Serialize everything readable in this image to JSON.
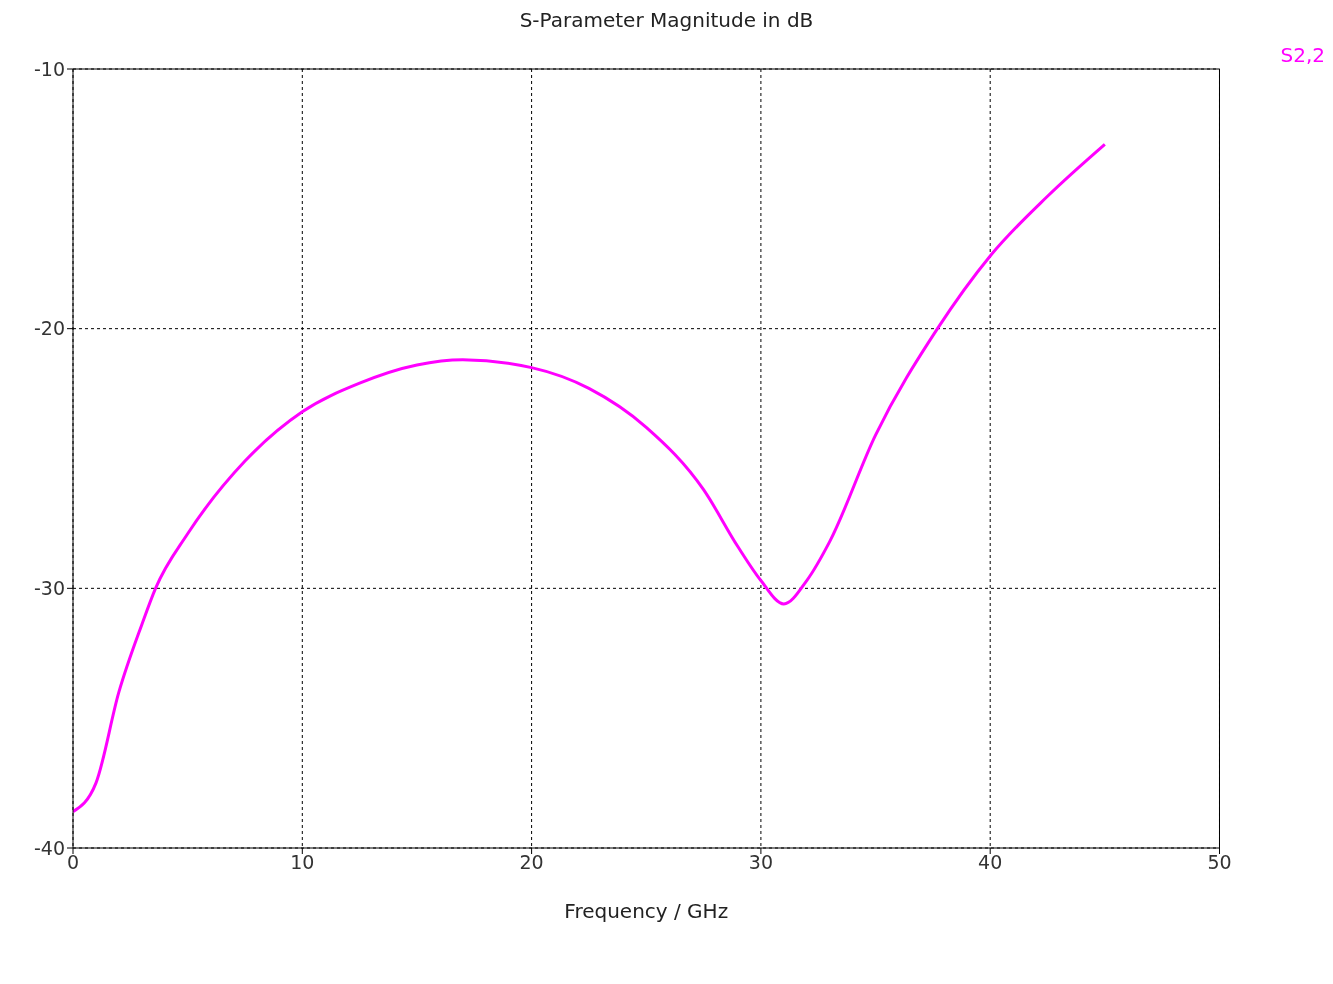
{
  "chart_data": {
    "type": "line",
    "title": "S-Parameter Magnitude in dB",
    "xlabel": "Frequency / GHz",
    "x": [
      0,
      1,
      2,
      3,
      3.6,
      5,
      7.5,
      10,
      12.5,
      15,
      17,
      20,
      22.5,
      25,
      27.5,
      29,
      30,
      31,
      32,
      33,
      35,
      37.7,
      40,
      42.5,
      45
    ],
    "series": [
      {
        "name": "S2,2",
        "color": "#ff00ff",
        "values": [
          -38.6,
          -37.5,
          -34.0,
          -31.4,
          -30.0,
          -27.9,
          -25.1,
          -23.2,
          -22.1,
          -21.4,
          -21.2,
          -21.5,
          -22.3,
          -23.8,
          -26.2,
          -28.4,
          -29.7,
          -30.6,
          -29.7,
          -28.2,
          -24.1,
          -20.0,
          -17.2,
          -14.9,
          -12.9
        ]
      }
    ],
    "xlim": [
      0,
      50
    ],
    "xticks": [
      0,
      10,
      20,
      30,
      40,
      50
    ],
    "ylim": [
      -40,
      -10
    ],
    "yticks": [
      -40,
      -30,
      -20,
      -10
    ],
    "grid": true,
    "legend": "top right",
    "line_style": "solid",
    "marker": "none"
  }
}
